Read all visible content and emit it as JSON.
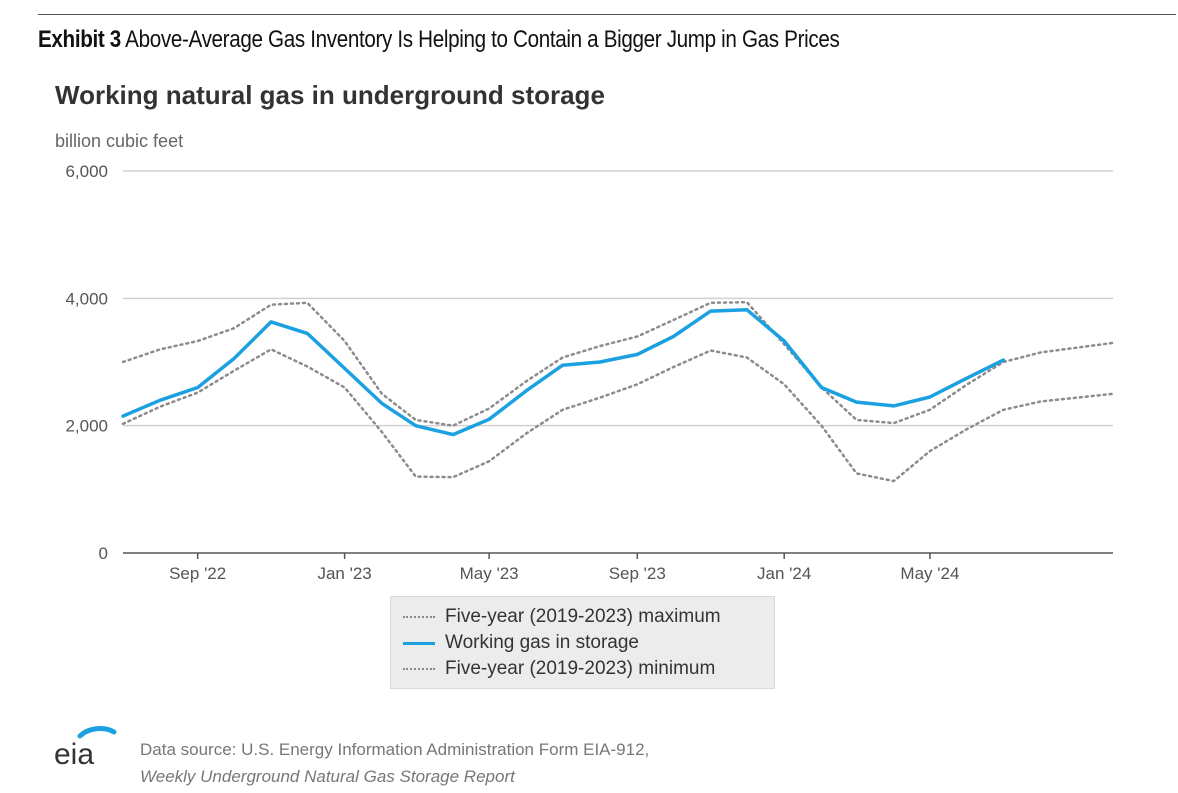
{
  "exhibit": {
    "label": "Exhibit 3",
    "title": "Above-Average Gas Inventory Is Helping to Contain a Bigger Jump in Gas Prices"
  },
  "colors": {
    "series_line": "#1ba0e1",
    "envelope": "#8c8c8c",
    "grid": "#d0d0d0",
    "axis": "#555555"
  },
  "logo": {
    "icon": "eia-logo",
    "text": "eia"
  },
  "source": {
    "line1": "Data source: U.S. Energy Information Administration Form EIA-912,",
    "line2": "Weekly Underground Natural Gas Storage Report"
  },
  "chart_data": {
    "type": "line",
    "title": "Working natural gas in underground storage",
    "ylabel": "billion cubic feet",
    "ylim": [
      0,
      6000
    ],
    "yticks": [
      0,
      2000,
      4000,
      6000
    ],
    "ytick_labels": [
      "0",
      "2,000",
      "4,000",
      "6,000"
    ],
    "xlim": [
      "2022-07-01",
      "2024-09-30"
    ],
    "xticks": [
      "2022-09-01",
      "2023-01-01",
      "2023-05-01",
      "2023-09-01",
      "2024-01-01",
      "2024-05-01"
    ],
    "xtick_labels": [
      "Sep '22",
      "Jan '23",
      "May '23",
      "Sep '23",
      "Jan '24",
      "May '24"
    ],
    "grid": true,
    "legend_position": "bottom",
    "series": [
      {
        "name": "Five-year (2019-2023) maximum",
        "style": "dotted",
        "color": "#8c8c8c",
        "x": [
          "2022-07-01",
          "2022-08-01",
          "2022-09-01",
          "2022-10-01",
          "2022-11-01",
          "2022-12-01",
          "2023-01-01",
          "2023-02-01",
          "2023-03-01",
          "2023-04-01",
          "2023-05-01",
          "2023-06-01",
          "2023-07-01",
          "2023-08-01",
          "2023-09-01",
          "2023-10-01",
          "2023-11-01",
          "2023-12-01",
          "2024-01-01",
          "2024-02-01",
          "2024-03-01",
          "2024-04-01",
          "2024-05-01",
          "2024-06-01",
          "2024-07-01",
          "2024-08-01",
          "2024-09-30"
        ],
        "values": [
          3000,
          3200,
          3330,
          3530,
          3900,
          3930,
          3330,
          2500,
          2090,
          2000,
          2270,
          2700,
          3070,
          3250,
          3400,
          3660,
          3930,
          3940,
          3280,
          2600,
          2090,
          2040,
          2250,
          2650,
          3000,
          3150,
          3300
        ]
      },
      {
        "name": "Working gas in storage",
        "style": "solid",
        "color": "#1ba0e1",
        "x": [
          "2022-07-01",
          "2022-08-01",
          "2022-09-01",
          "2022-10-01",
          "2022-11-01",
          "2022-12-01",
          "2023-01-01",
          "2023-02-01",
          "2023-03-01",
          "2023-04-01",
          "2023-05-01",
          "2023-06-01",
          "2023-07-01",
          "2023-08-01",
          "2023-09-01",
          "2023-10-01",
          "2023-11-01",
          "2023-12-01",
          "2024-01-01",
          "2024-02-01",
          "2024-03-01",
          "2024-04-01",
          "2024-05-01",
          "2024-06-01",
          "2024-07-01"
        ],
        "values": [
          2150,
          2400,
          2600,
          3050,
          3630,
          3450,
          2900,
          2350,
          2000,
          1860,
          2100,
          2550,
          2950,
          3000,
          3120,
          3400,
          3800,
          3820,
          3330,
          2600,
          2370,
          2310,
          2450,
          2750,
          3030
        ]
      },
      {
        "name": "Five-year (2019-2023) minimum",
        "style": "dotted",
        "color": "#8c8c8c",
        "x": [
          "2022-07-01",
          "2022-08-01",
          "2022-09-01",
          "2022-10-01",
          "2022-11-01",
          "2022-12-01",
          "2023-01-01",
          "2023-02-01",
          "2023-03-01",
          "2023-04-01",
          "2023-05-01",
          "2023-06-01",
          "2023-07-01",
          "2023-08-01",
          "2023-09-01",
          "2023-10-01",
          "2023-11-01",
          "2023-12-01",
          "2024-01-01",
          "2024-02-01",
          "2024-03-01",
          "2024-04-01",
          "2024-05-01",
          "2024-06-01",
          "2024-07-01",
          "2024-08-01",
          "2024-09-30"
        ],
        "values": [
          2030,
          2300,
          2520,
          2860,
          3200,
          2930,
          2600,
          1900,
          1200,
          1190,
          1440,
          1880,
          2250,
          2440,
          2650,
          2920,
          3180,
          3070,
          2650,
          2000,
          1250,
          1130,
          1600,
          1950,
          2250,
          2380,
          2500
        ]
      }
    ]
  }
}
